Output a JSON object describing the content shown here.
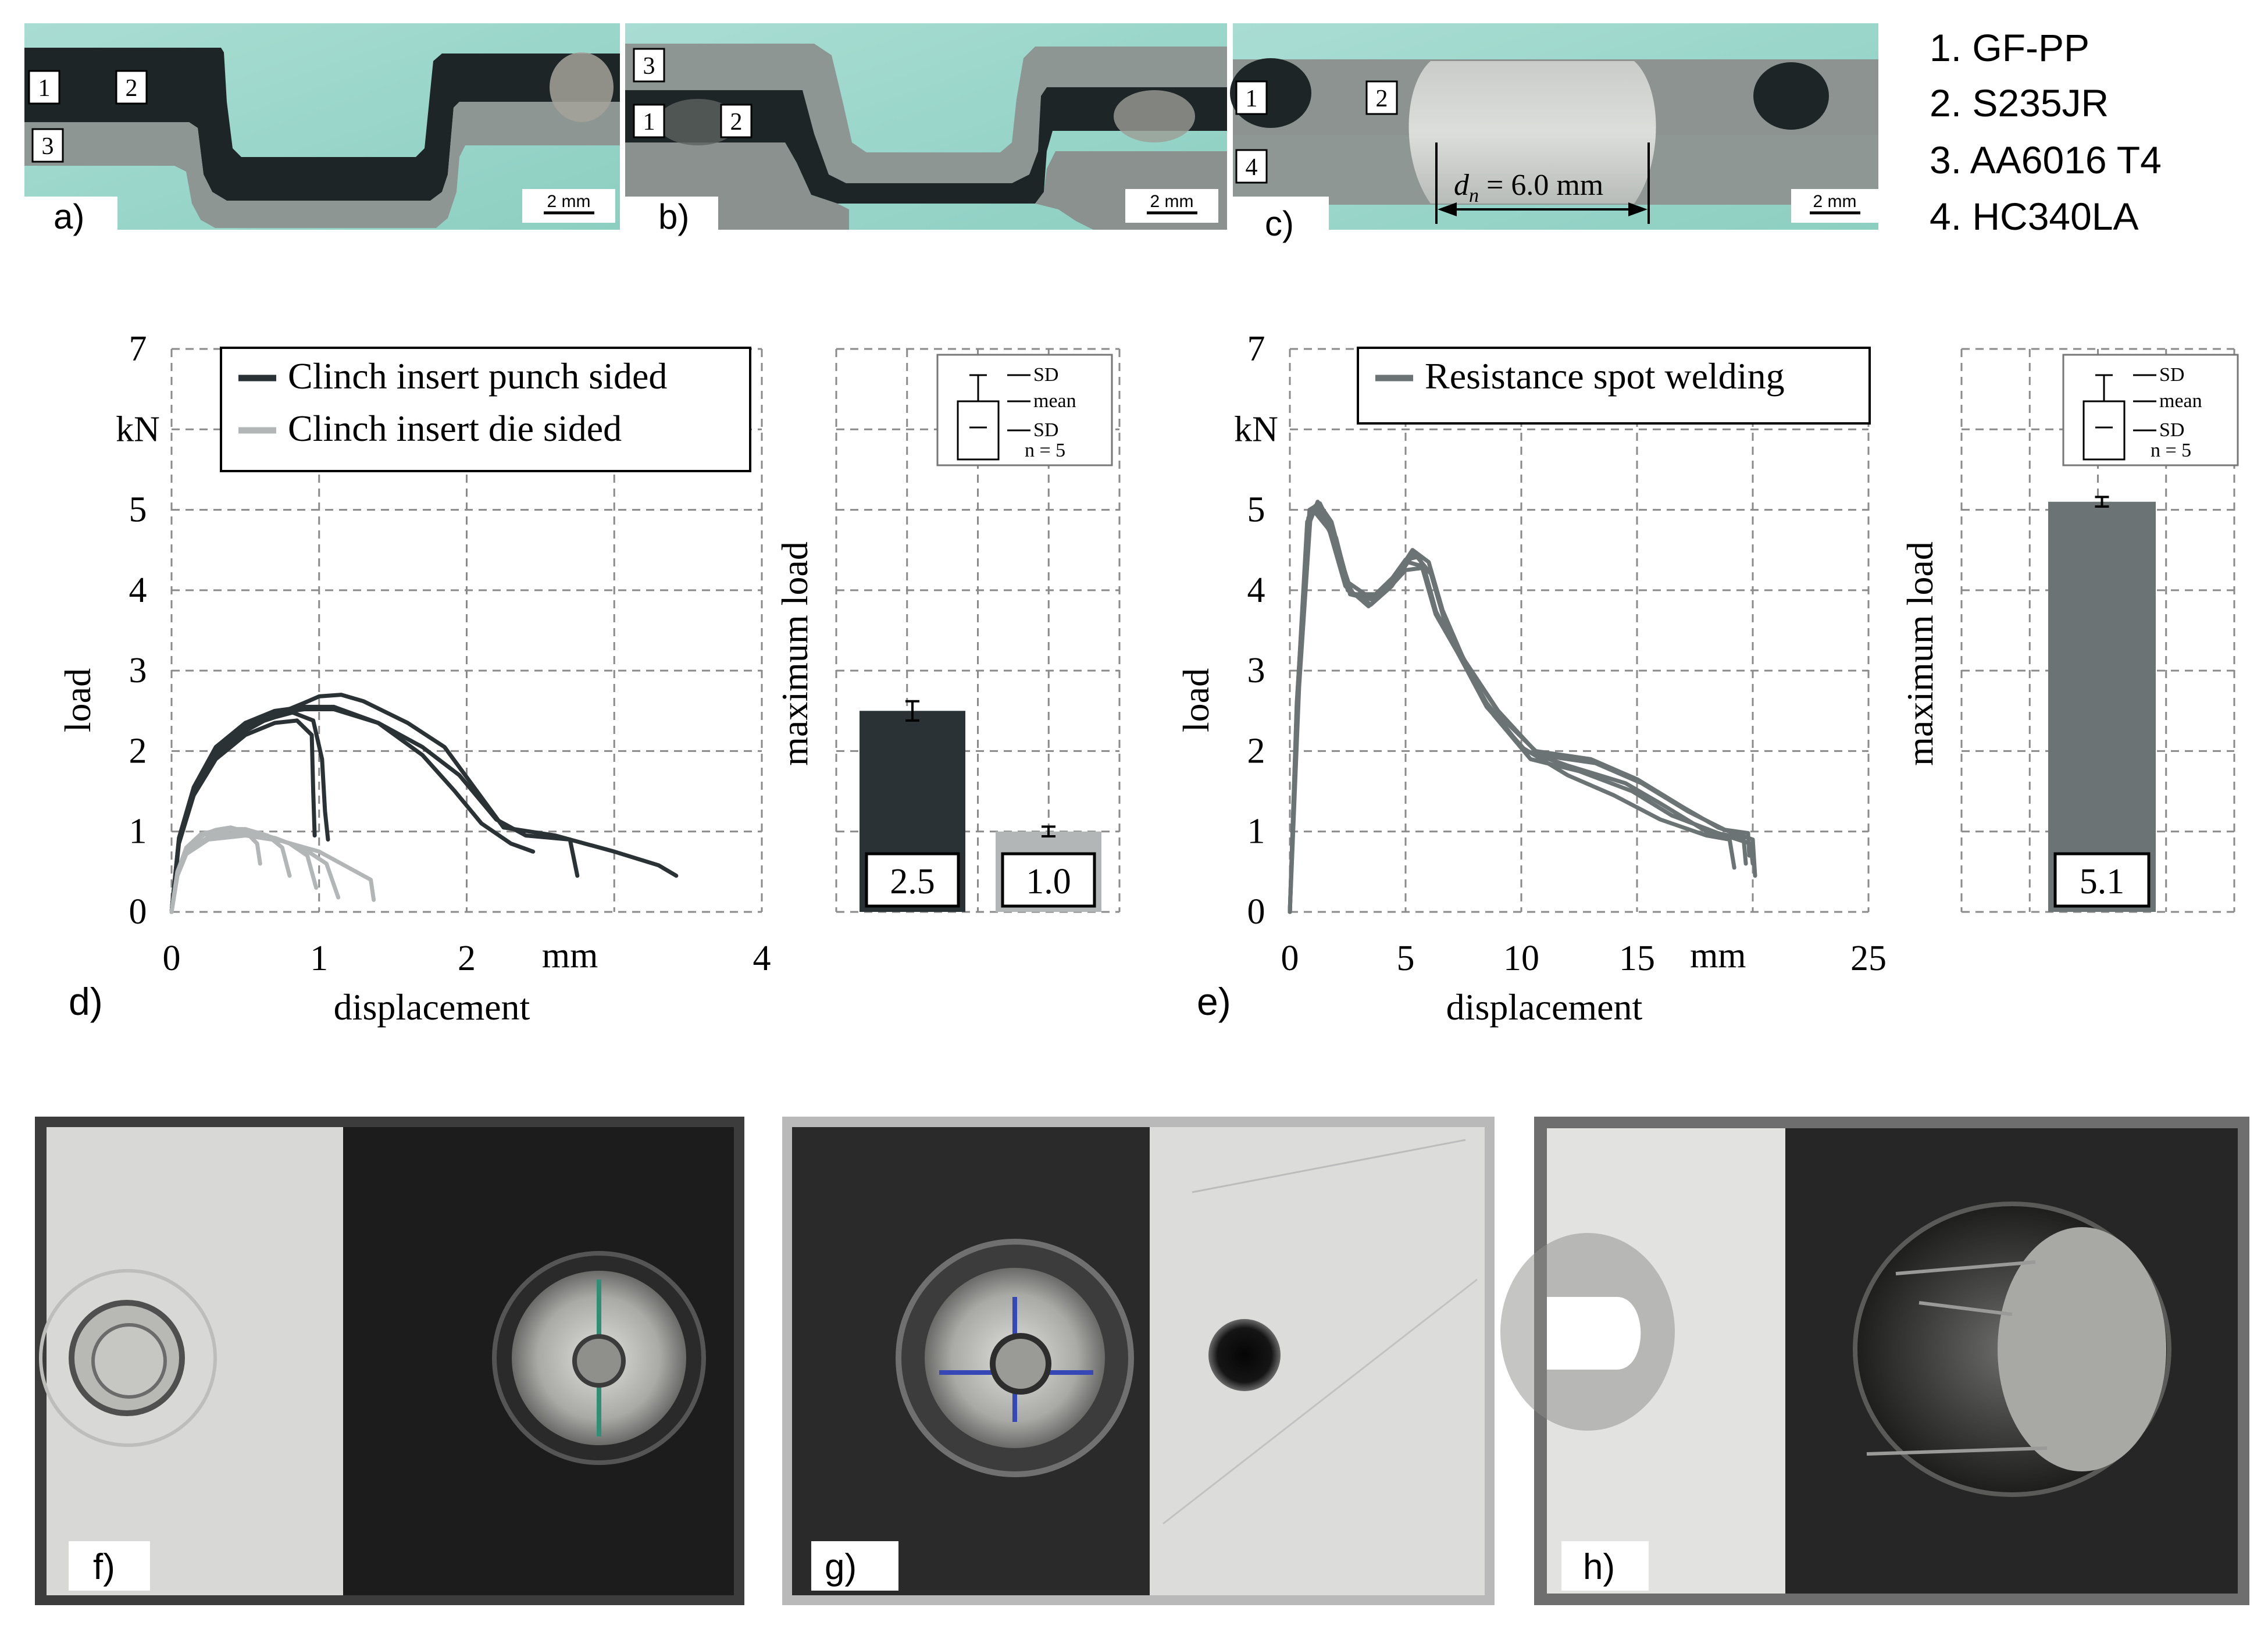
{
  "legend_materials": [
    "1. GF-PP",
    "2. S235JR",
    "3. AA6016 T4",
    "4. HC340LA"
  ],
  "sections": [
    {
      "label": "a)",
      "scale": "2 mm",
      "markers": [
        "1",
        "2",
        "3"
      ]
    },
    {
      "label": "b)",
      "scale": "2 mm",
      "markers": [
        "3",
        "1",
        "2"
      ]
    },
    {
      "label": "c)",
      "scale": "2 mm",
      "markers": [
        "1",
        "2",
        "4"
      ],
      "nugget_label": "d",
      "nugget_sub": "n",
      "nugget_value": " = 6.0 mm"
    }
  ],
  "photos": [
    {
      "label": "f)"
    },
    {
      "label": "g)"
    },
    {
      "label": "h)"
    }
  ],
  "sd_box": {
    "sd_top": "SD",
    "mean": "mean",
    "sd_bottom": "SD",
    "n": "n = 5"
  },
  "chart_data": [
    {
      "panel_label": "d)",
      "type": "line",
      "xlabel": "displacement",
      "ylabel": "load",
      "x_unit": "mm",
      "y_unit": "kN",
      "xlim": [
        0,
        4
      ],
      "ylim": [
        0,
        7
      ],
      "x_ticks": [
        "0",
        "1",
        "2",
        "",
        "4"
      ],
      "y_ticks": [
        "0",
        "1",
        "2",
        "3",
        "4",
        "5",
        "",
        "7"
      ],
      "grid": true,
      "legend_position": "top",
      "series": [
        {
          "name": "Clinch insert punch sided",
          "color": "#2b3235",
          "curves": [
            [
              [
                0,
                0
              ],
              [
                0.05,
                0.9
              ],
              [
                0.15,
                1.5
              ],
              [
                0.3,
                1.95
              ],
              [
                0.5,
                2.25
              ],
              [
                0.7,
                2.45
              ],
              [
                0.9,
                2.6
              ],
              [
                1.0,
                2.68
              ],
              [
                1.15,
                2.7
              ],
              [
                1.3,
                2.62
              ],
              [
                1.6,
                2.35
              ],
              [
                1.85,
                2.05
              ],
              [
                2.05,
                1.55
              ],
              [
                2.25,
                1.05
              ],
              [
                2.6,
                0.95
              ],
              [
                3.0,
                0.75
              ],
              [
                3.3,
                0.58
              ],
              [
                3.42,
                0.45
              ]
            ],
            [
              [
                0,
                0
              ],
              [
                0.05,
                0.85
              ],
              [
                0.15,
                1.45
              ],
              [
                0.3,
                1.9
              ],
              [
                0.5,
                2.2
              ],
              [
                0.7,
                2.35
              ],
              [
                0.85,
                2.38
              ],
              [
                0.95,
                2.2
              ],
              [
                0.96,
                1.5
              ],
              [
                0.97,
                0.95
              ]
            ],
            [
              [
                0,
                0
              ],
              [
                0.05,
                0.88
              ],
              [
                0.15,
                1.5
              ],
              [
                0.3,
                2.0
              ],
              [
                0.5,
                2.3
              ],
              [
                0.7,
                2.42
              ],
              [
                0.82,
                2.48
              ],
              [
                0.96,
                2.38
              ],
              [
                1.02,
                1.9
              ],
              [
                1.04,
                1.25
              ],
              [
                1.06,
                0.9
              ]
            ],
            [
              [
                0,
                0
              ],
              [
                0.05,
                0.9
              ],
              [
                0.15,
                1.52
              ],
              [
                0.3,
                2.02
              ],
              [
                0.5,
                2.32
              ],
              [
                0.7,
                2.47
              ],
              [
                0.9,
                2.52
              ],
              [
                1.1,
                2.52
              ],
              [
                1.4,
                2.35
              ],
              [
                1.7,
                2.05
              ],
              [
                1.95,
                1.7
              ],
              [
                2.2,
                1.15
              ],
              [
                2.4,
                0.95
              ],
              [
                2.7,
                0.9
              ],
              [
                2.75,
                0.45
              ]
            ],
            [
              [
                0,
                0
              ],
              [
                0.05,
                0.92
              ],
              [
                0.15,
                1.55
              ],
              [
                0.3,
                2.05
              ],
              [
                0.5,
                2.35
              ],
              [
                0.7,
                2.5
              ],
              [
                0.9,
                2.55
              ],
              [
                1.1,
                2.55
              ],
              [
                1.4,
                2.35
              ],
              [
                1.7,
                1.95
              ],
              [
                1.92,
                1.5
              ],
              [
                2.1,
                1.1
              ],
              [
                2.3,
                0.85
              ],
              [
                2.45,
                0.75
              ]
            ]
          ]
        },
        {
          "name": "Clinch insert die sided",
          "color": "#b3b6b6",
          "curves": [
            [
              [
                0,
                0
              ],
              [
                0.04,
                0.5
              ],
              [
                0.1,
                0.78
              ],
              [
                0.2,
                0.95
              ],
              [
                0.3,
                1.02
              ],
              [
                0.4,
                1.05
              ],
              [
                0.5,
                1.0
              ],
              [
                0.58,
                0.85
              ],
              [
                0.6,
                0.6
              ]
            ],
            [
              [
                0,
                0
              ],
              [
                0.04,
                0.5
              ],
              [
                0.1,
                0.8
              ],
              [
                0.2,
                0.97
              ],
              [
                0.35,
                1.03
              ],
              [
                0.5,
                1.03
              ],
              [
                0.65,
                0.95
              ],
              [
                0.75,
                0.8
              ],
              [
                0.8,
                0.45
              ]
            ],
            [
              [
                0,
                0
              ],
              [
                0.04,
                0.48
              ],
              [
                0.1,
                0.78
              ],
              [
                0.22,
                0.96
              ],
              [
                0.4,
                1.02
              ],
              [
                0.6,
                0.98
              ],
              [
                0.8,
                0.85
              ],
              [
                0.92,
                0.7
              ],
              [
                0.98,
                0.3
              ]
            ],
            [
              [
                0,
                0
              ],
              [
                0.04,
                0.46
              ],
              [
                0.1,
                0.75
              ],
              [
                0.25,
                0.93
              ],
              [
                0.45,
                0.98
              ],
              [
                0.7,
                0.92
              ],
              [
                0.9,
                0.78
              ],
              [
                1.05,
                0.6
              ],
              [
                1.13,
                0.18
              ]
            ],
            [
              [
                0,
                0
              ],
              [
                0.04,
                0.45
              ],
              [
                0.1,
                0.72
              ],
              [
                0.25,
                0.9
              ],
              [
                0.5,
                0.95
              ],
              [
                0.75,
                0.88
              ],
              [
                1.0,
                0.75
              ],
              [
                1.2,
                0.55
              ],
              [
                1.35,
                0.4
              ],
              [
                1.37,
                0.15
              ]
            ]
          ]
        }
      ]
    },
    {
      "panel_label": "",
      "type": "bar",
      "ylabel": "maximum load",
      "ylim": [
        0,
        7
      ],
      "grid": true,
      "categories": [
        "Clinch insert punch sided",
        "Clinch insert die sided"
      ],
      "values": [
        2.5,
        1.0
      ],
      "error": [
        0.12,
        0.06
      ],
      "value_labels": [
        "2.5",
        "1.0"
      ],
      "colors": [
        "#2b3235",
        "#b3b6b6"
      ]
    },
    {
      "panel_label": "e)",
      "type": "line",
      "xlabel": "displacement",
      "ylabel": "load",
      "x_unit": "mm",
      "y_unit": "kN",
      "xlim": [
        0,
        25
      ],
      "ylim": [
        0,
        7
      ],
      "x_ticks": [
        "0",
        "5",
        "10",
        "15",
        "",
        "25"
      ],
      "y_ticks": [
        "0",
        "1",
        "2",
        "3",
        "4",
        "5",
        "",
        "7"
      ],
      "grid": true,
      "legend_position": "top",
      "series": [
        {
          "name": "Resistance spot welding",
          "color": "#6c7374",
          "curves": [
            [
              [
                0,
                0
              ],
              [
                0.3,
                2.5
              ],
              [
                0.8,
                4.8
              ],
              [
                1.2,
                5.1
              ],
              [
                1.8,
                4.85
              ],
              [
                2.5,
                4.1
              ],
              [
                3.5,
                3.9
              ],
              [
                4.3,
                4.1
              ],
              [
                5.0,
                4.38
              ],
              [
                5.6,
                4.42
              ],
              [
                6.2,
                3.8
              ],
              [
                7.0,
                3.35
              ],
              [
                8.5,
                2.6
              ],
              [
                10.0,
                2.05
              ],
              [
                12.0,
                1.7
              ],
              [
                14.0,
                1.45
              ],
              [
                16.0,
                1.15
              ],
              [
                18.0,
                0.95
              ],
              [
                19.0,
                0.9
              ],
              [
                19.2,
                0.55
              ]
            ],
            [
              [
                0,
                0
              ],
              [
                0.3,
                2.6
              ],
              [
                0.8,
                4.9
              ],
              [
                1.1,
                5.05
              ],
              [
                1.9,
                4.7
              ],
              [
                2.5,
                4.0
              ],
              [
                3.5,
                3.82
              ],
              [
                4.4,
                4.05
              ],
              [
                5.1,
                4.35
              ],
              [
                5.7,
                4.3
              ],
              [
                6.3,
                3.7
              ],
              [
                7.2,
                3.25
              ],
              [
                8.5,
                2.55
              ],
              [
                10.2,
                2.0
              ],
              [
                12.0,
                1.82
              ],
              [
                14.5,
                1.6
              ],
              [
                16.0,
                1.35
              ],
              [
                18.0,
                1.0
              ],
              [
                19.6,
                0.92
              ],
              [
                19.7,
                0.6
              ]
            ],
            [
              [
                0,
                0
              ],
              [
                0.35,
                2.7
              ],
              [
                0.85,
                5.0
              ],
              [
                1.3,
                5.08
              ],
              [
                2.0,
                4.65
              ],
              [
                2.6,
                3.95
              ],
              [
                3.6,
                3.88
              ],
              [
                4.5,
                4.15
              ],
              [
                5.3,
                4.5
              ],
              [
                6.0,
                4.35
              ],
              [
                6.6,
                3.75
              ],
              [
                7.5,
                3.15
              ],
              [
                9.0,
                2.5
              ],
              [
                10.6,
                2.0
              ],
              [
                13.0,
                1.9
              ],
              [
                15.0,
                1.65
              ],
              [
                17.0,
                1.3
              ],
              [
                18.5,
                1.05
              ],
              [
                20.0,
                0.9
              ],
              [
                20.1,
                0.45
              ]
            ],
            [
              [
                0,
                0
              ],
              [
                0.3,
                2.55
              ],
              [
                0.75,
                4.85
              ],
              [
                1.0,
                5.0
              ],
              [
                1.7,
                4.75
              ],
              [
                2.4,
                4.05
              ],
              [
                3.4,
                3.8
              ],
              [
                4.2,
                4.0
              ],
              [
                5.0,
                4.25
              ],
              [
                5.8,
                4.28
              ],
              [
                6.4,
                3.65
              ],
              [
                7.3,
                3.2
              ],
              [
                8.8,
                2.45
              ],
              [
                10.4,
                1.9
              ],
              [
                12.5,
                1.75
              ],
              [
                14.8,
                1.5
              ],
              [
                16.5,
                1.2
              ],
              [
                18.5,
                0.98
              ],
              [
                19.9,
                0.85
              ],
              [
                20.0,
                0.6
              ]
            ],
            [
              [
                0,
                0
              ],
              [
                0.4,
                2.8
              ],
              [
                0.9,
                4.95
              ],
              [
                1.2,
                5.02
              ],
              [
                1.95,
                4.6
              ],
              [
                2.7,
                3.95
              ],
              [
                3.7,
                3.95
              ],
              [
                4.6,
                4.2
              ],
              [
                5.4,
                4.45
              ],
              [
                6.1,
                4.2
              ],
              [
                6.7,
                3.6
              ],
              [
                7.6,
                3.1
              ],
              [
                9.2,
                2.4
              ],
              [
                10.8,
                1.95
              ],
              [
                13.2,
                1.85
              ],
              [
                15.2,
                1.6
              ],
              [
                17.2,
                1.25
              ],
              [
                18.8,
                1.02
              ],
              [
                19.8,
                0.98
              ],
              [
                19.85,
                0.7
              ]
            ]
          ]
        }
      ]
    },
    {
      "panel_label": "",
      "type": "bar",
      "ylabel": "maximum load",
      "ylim": [
        0,
        7
      ],
      "grid": true,
      "categories": [
        "Resistance spot welding"
      ],
      "values": [
        5.1
      ],
      "error": [
        0.06
      ],
      "value_labels": [
        "5.1"
      ],
      "colors": [
        "#6c7374"
      ]
    }
  ]
}
